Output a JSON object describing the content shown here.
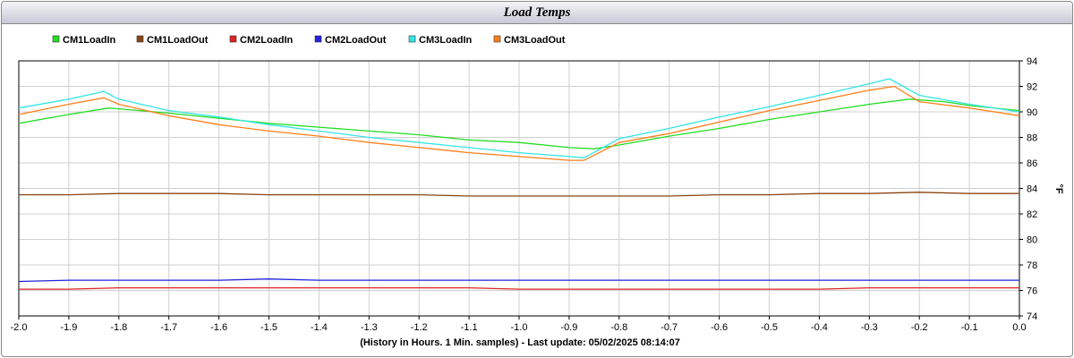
{
  "chart_data": {
    "type": "line",
    "title": "Load Temps",
    "xlabel": "(History in Hours. 1 Min. samples) - Last update: 05/02/2025 08:14:07",
    "ylabel": "°F",
    "xlim": [
      -2.0,
      0.0
    ],
    "ylim": [
      74,
      94
    ],
    "x_ticks": [
      "-2.0",
      "-1.9",
      "-1.8",
      "-1.7",
      "-1.6",
      "-1.5",
      "-1.4",
      "-1.3",
      "-1.2",
      "-1.1",
      "-1.0",
      "-0.9",
      "-0.8",
      "-0.7",
      "-0.6",
      "-0.5",
      "-0.4",
      "-0.3",
      "-0.2",
      "-0.1",
      "0.0"
    ],
    "y_ticks": [
      "74",
      "76",
      "78",
      "80",
      "82",
      "84",
      "86",
      "88",
      "90",
      "92",
      "94"
    ],
    "grid": true,
    "legend_position": "top-left",
    "series": [
      {
        "name": "CM1LoadIn",
        "color": "#22dd22",
        "x": [
          -2.0,
          -1.9,
          -1.82,
          -1.7,
          -1.6,
          -1.5,
          -1.4,
          -1.3,
          -1.2,
          -1.1,
          -1.0,
          -0.9,
          -0.85,
          -0.8,
          -0.7,
          -0.6,
          -0.5,
          -0.4,
          -0.3,
          -0.22,
          -0.15,
          -0.1,
          0.0
        ],
        "y": [
          89.1,
          89.8,
          90.3,
          89.9,
          89.5,
          89.1,
          88.8,
          88.5,
          88.2,
          87.8,
          87.6,
          87.2,
          87.1,
          87.4,
          88.1,
          88.7,
          89.4,
          90.0,
          90.6,
          91.0,
          90.8,
          90.5,
          90.1
        ]
      },
      {
        "name": "CM1LoadOut",
        "color": "#8b4513",
        "x": [
          -2.0,
          -1.9,
          -1.8,
          -1.7,
          -1.6,
          -1.5,
          -1.4,
          -1.3,
          -1.2,
          -1.1,
          -1.0,
          -0.9,
          -0.8,
          -0.7,
          -0.6,
          -0.5,
          -0.4,
          -0.3,
          -0.2,
          -0.1,
          0.0
        ],
        "y": [
          83.5,
          83.5,
          83.6,
          83.6,
          83.6,
          83.5,
          83.5,
          83.5,
          83.5,
          83.4,
          83.4,
          83.4,
          83.4,
          83.4,
          83.5,
          83.5,
          83.6,
          83.6,
          83.7,
          83.6,
          83.6
        ]
      },
      {
        "name": "CM2LoadIn",
        "color": "#dd2222",
        "x": [
          -2.0,
          -1.9,
          -1.8,
          -1.7,
          -1.6,
          -1.5,
          -1.4,
          -1.3,
          -1.2,
          -1.1,
          -1.0,
          -0.9,
          -0.8,
          -0.7,
          -0.6,
          -0.5,
          -0.4,
          -0.3,
          -0.2,
          -0.1,
          0.0
        ],
        "y": [
          76.1,
          76.1,
          76.2,
          76.2,
          76.2,
          76.2,
          76.2,
          76.2,
          76.2,
          76.2,
          76.1,
          76.1,
          76.1,
          76.1,
          76.1,
          76.1,
          76.1,
          76.2,
          76.2,
          76.2,
          76.2
        ]
      },
      {
        "name": "CM2LoadOut",
        "color": "#2222dd",
        "x": [
          -2.0,
          -1.9,
          -1.8,
          -1.7,
          -1.6,
          -1.5,
          -1.4,
          -1.3,
          -1.2,
          -1.1,
          -1.0,
          -0.9,
          -0.8,
          -0.7,
          -0.6,
          -0.5,
          -0.4,
          -0.3,
          -0.2,
          -0.1,
          0.0
        ],
        "y": [
          76.7,
          76.8,
          76.8,
          76.8,
          76.8,
          76.9,
          76.8,
          76.8,
          76.8,
          76.8,
          76.8,
          76.8,
          76.8,
          76.8,
          76.8,
          76.8,
          76.8,
          76.8,
          76.8,
          76.8,
          76.8
        ]
      },
      {
        "name": "CM3LoadIn",
        "color": "#33e5e5",
        "x": [
          -2.0,
          -1.9,
          -1.83,
          -1.8,
          -1.7,
          -1.6,
          -1.5,
          -1.4,
          -1.3,
          -1.2,
          -1.1,
          -1.0,
          -0.9,
          -0.87,
          -0.8,
          -0.7,
          -0.6,
          -0.5,
          -0.4,
          -0.3,
          -0.26,
          -0.2,
          -0.1,
          0.0
        ],
        "y": [
          90.3,
          91.0,
          91.6,
          91.0,
          90.1,
          89.6,
          89.0,
          88.5,
          88.0,
          87.6,
          87.2,
          86.8,
          86.5,
          86.4,
          87.9,
          88.7,
          89.6,
          90.4,
          91.3,
          92.2,
          92.6,
          91.3,
          90.6,
          90.0
        ]
      },
      {
        "name": "CM3LoadOut",
        "color": "#ff7f1a",
        "x": [
          -2.0,
          -1.9,
          -1.83,
          -1.8,
          -1.7,
          -1.6,
          -1.5,
          -1.4,
          -1.3,
          -1.2,
          -1.1,
          -1.0,
          -0.9,
          -0.87,
          -0.8,
          -0.7,
          -0.6,
          -0.5,
          -0.4,
          -0.3,
          -0.25,
          -0.2,
          -0.1,
          0.0
        ],
        "y": [
          89.8,
          90.6,
          91.1,
          90.6,
          89.7,
          89.0,
          88.5,
          88.1,
          87.6,
          87.2,
          86.8,
          86.5,
          86.2,
          86.2,
          87.6,
          88.3,
          89.2,
          90.1,
          90.9,
          91.7,
          92.0,
          90.8,
          90.3,
          89.7
        ]
      }
    ]
  }
}
